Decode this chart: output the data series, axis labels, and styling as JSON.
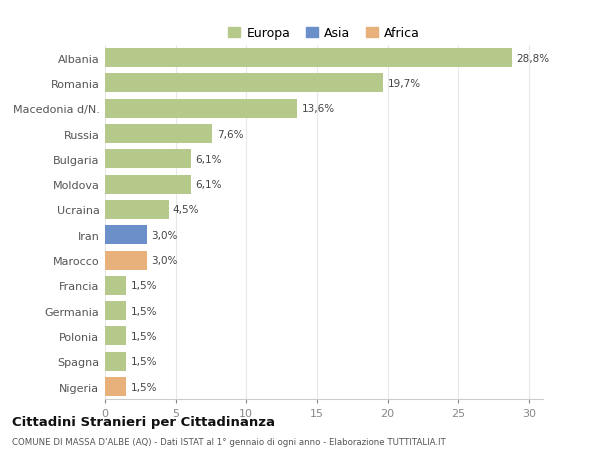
{
  "countries": [
    "Albania",
    "Romania",
    "Macedonia d/N.",
    "Russia",
    "Bulgaria",
    "Moldova",
    "Ucraina",
    "Iran",
    "Marocco",
    "Francia",
    "Germania",
    "Polonia",
    "Spagna",
    "Nigeria"
  ],
  "values": [
    28.8,
    19.7,
    13.6,
    7.6,
    6.1,
    6.1,
    4.5,
    3.0,
    3.0,
    1.5,
    1.5,
    1.5,
    1.5,
    1.5
  ],
  "labels": [
    "28,8%",
    "19,7%",
    "13,6%",
    "7,6%",
    "6,1%",
    "6,1%",
    "4,5%",
    "3,0%",
    "3,0%",
    "1,5%",
    "1,5%",
    "1,5%",
    "1,5%",
    "1,5%"
  ],
  "continents": [
    "Europa",
    "Europa",
    "Europa",
    "Europa",
    "Europa",
    "Europa",
    "Europa",
    "Asia",
    "Africa",
    "Europa",
    "Europa",
    "Europa",
    "Europa",
    "Africa"
  ],
  "colors": {
    "Europa": "#b5c98a",
    "Asia": "#6b8fc9",
    "Africa": "#e8b07a"
  },
  "title": "Cittadini Stranieri per Cittadinanza",
  "subtitle": "COMUNE DI MASSA D'ALBE (AQ) - Dati ISTAT al 1° gennaio di ogni anno - Elaborazione TUTTITALIA.IT",
  "xlim": [
    0,
    31
  ],
  "xticks": [
    0,
    5,
    10,
    15,
    20,
    25,
    30
  ],
  "background_color": "#ffffff",
  "grid_color": "#e8e8e8",
  "bar_height": 0.75
}
